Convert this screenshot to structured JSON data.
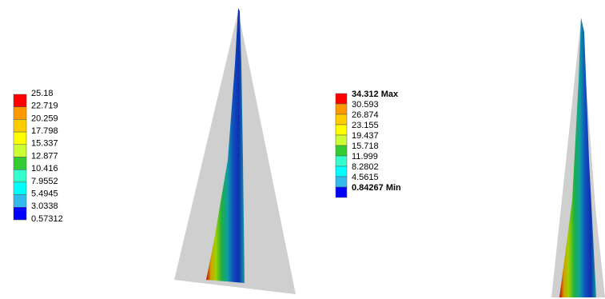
{
  "legend_left": {
    "labels": [
      "25.18",
      "22.719",
      "20.259",
      "17.798",
      "15.337",
      "12.877",
      "10.416",
      "7.9552",
      "5.4945",
      "3.0338",
      "0.57312"
    ]
  },
  "legend_right": {
    "labels": [
      "34.312 Max",
      "30.593",
      "26.874",
      "23.155",
      "19.437",
      "15.718",
      "11.999",
      "8.2802",
      "4.5615",
      "0.84267 Min"
    ]
  }
}
